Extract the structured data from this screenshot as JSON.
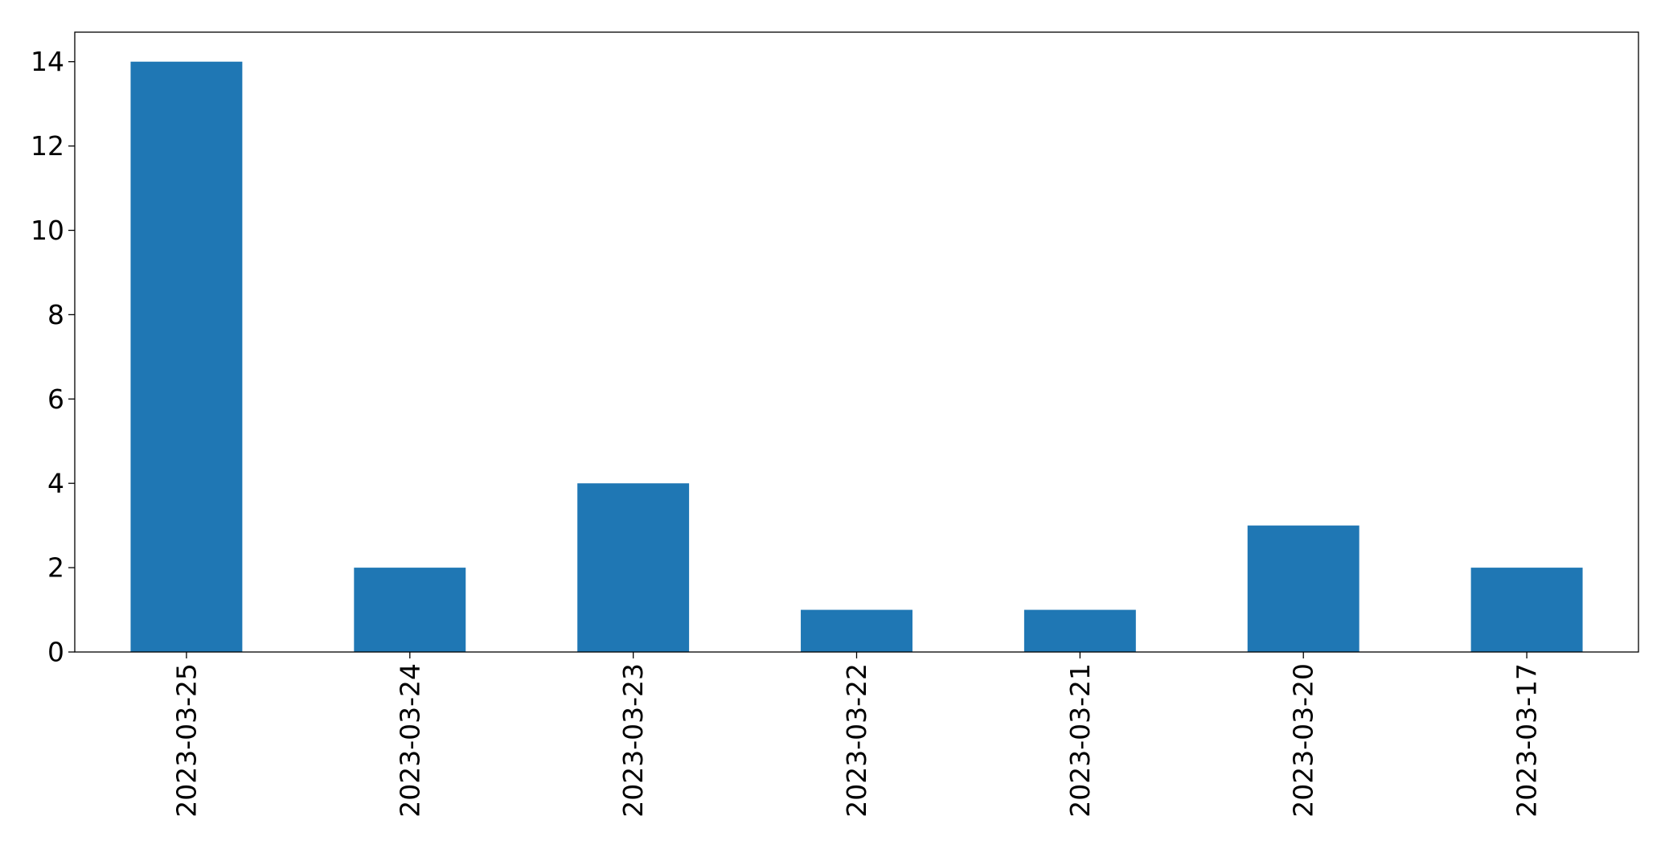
{
  "chart_data": {
    "type": "bar",
    "categories": [
      "2023-03-25",
      "2023-03-24",
      "2023-03-23",
      "2023-03-22",
      "2023-03-21",
      "2023-03-20",
      "2023-03-17"
    ],
    "values": [
      14,
      2,
      4,
      1,
      1,
      3,
      2
    ],
    "ylim": [
      0,
      14.7
    ],
    "yticks": [
      0,
      2,
      4,
      6,
      8,
      10,
      12,
      14
    ],
    "title": "",
    "xlabel": "",
    "ylabel": "",
    "grid": false,
    "legend": "none",
    "colors": {
      "bar": "#1f77b4",
      "axes": "#000000",
      "background": "#ffffff"
    }
  }
}
